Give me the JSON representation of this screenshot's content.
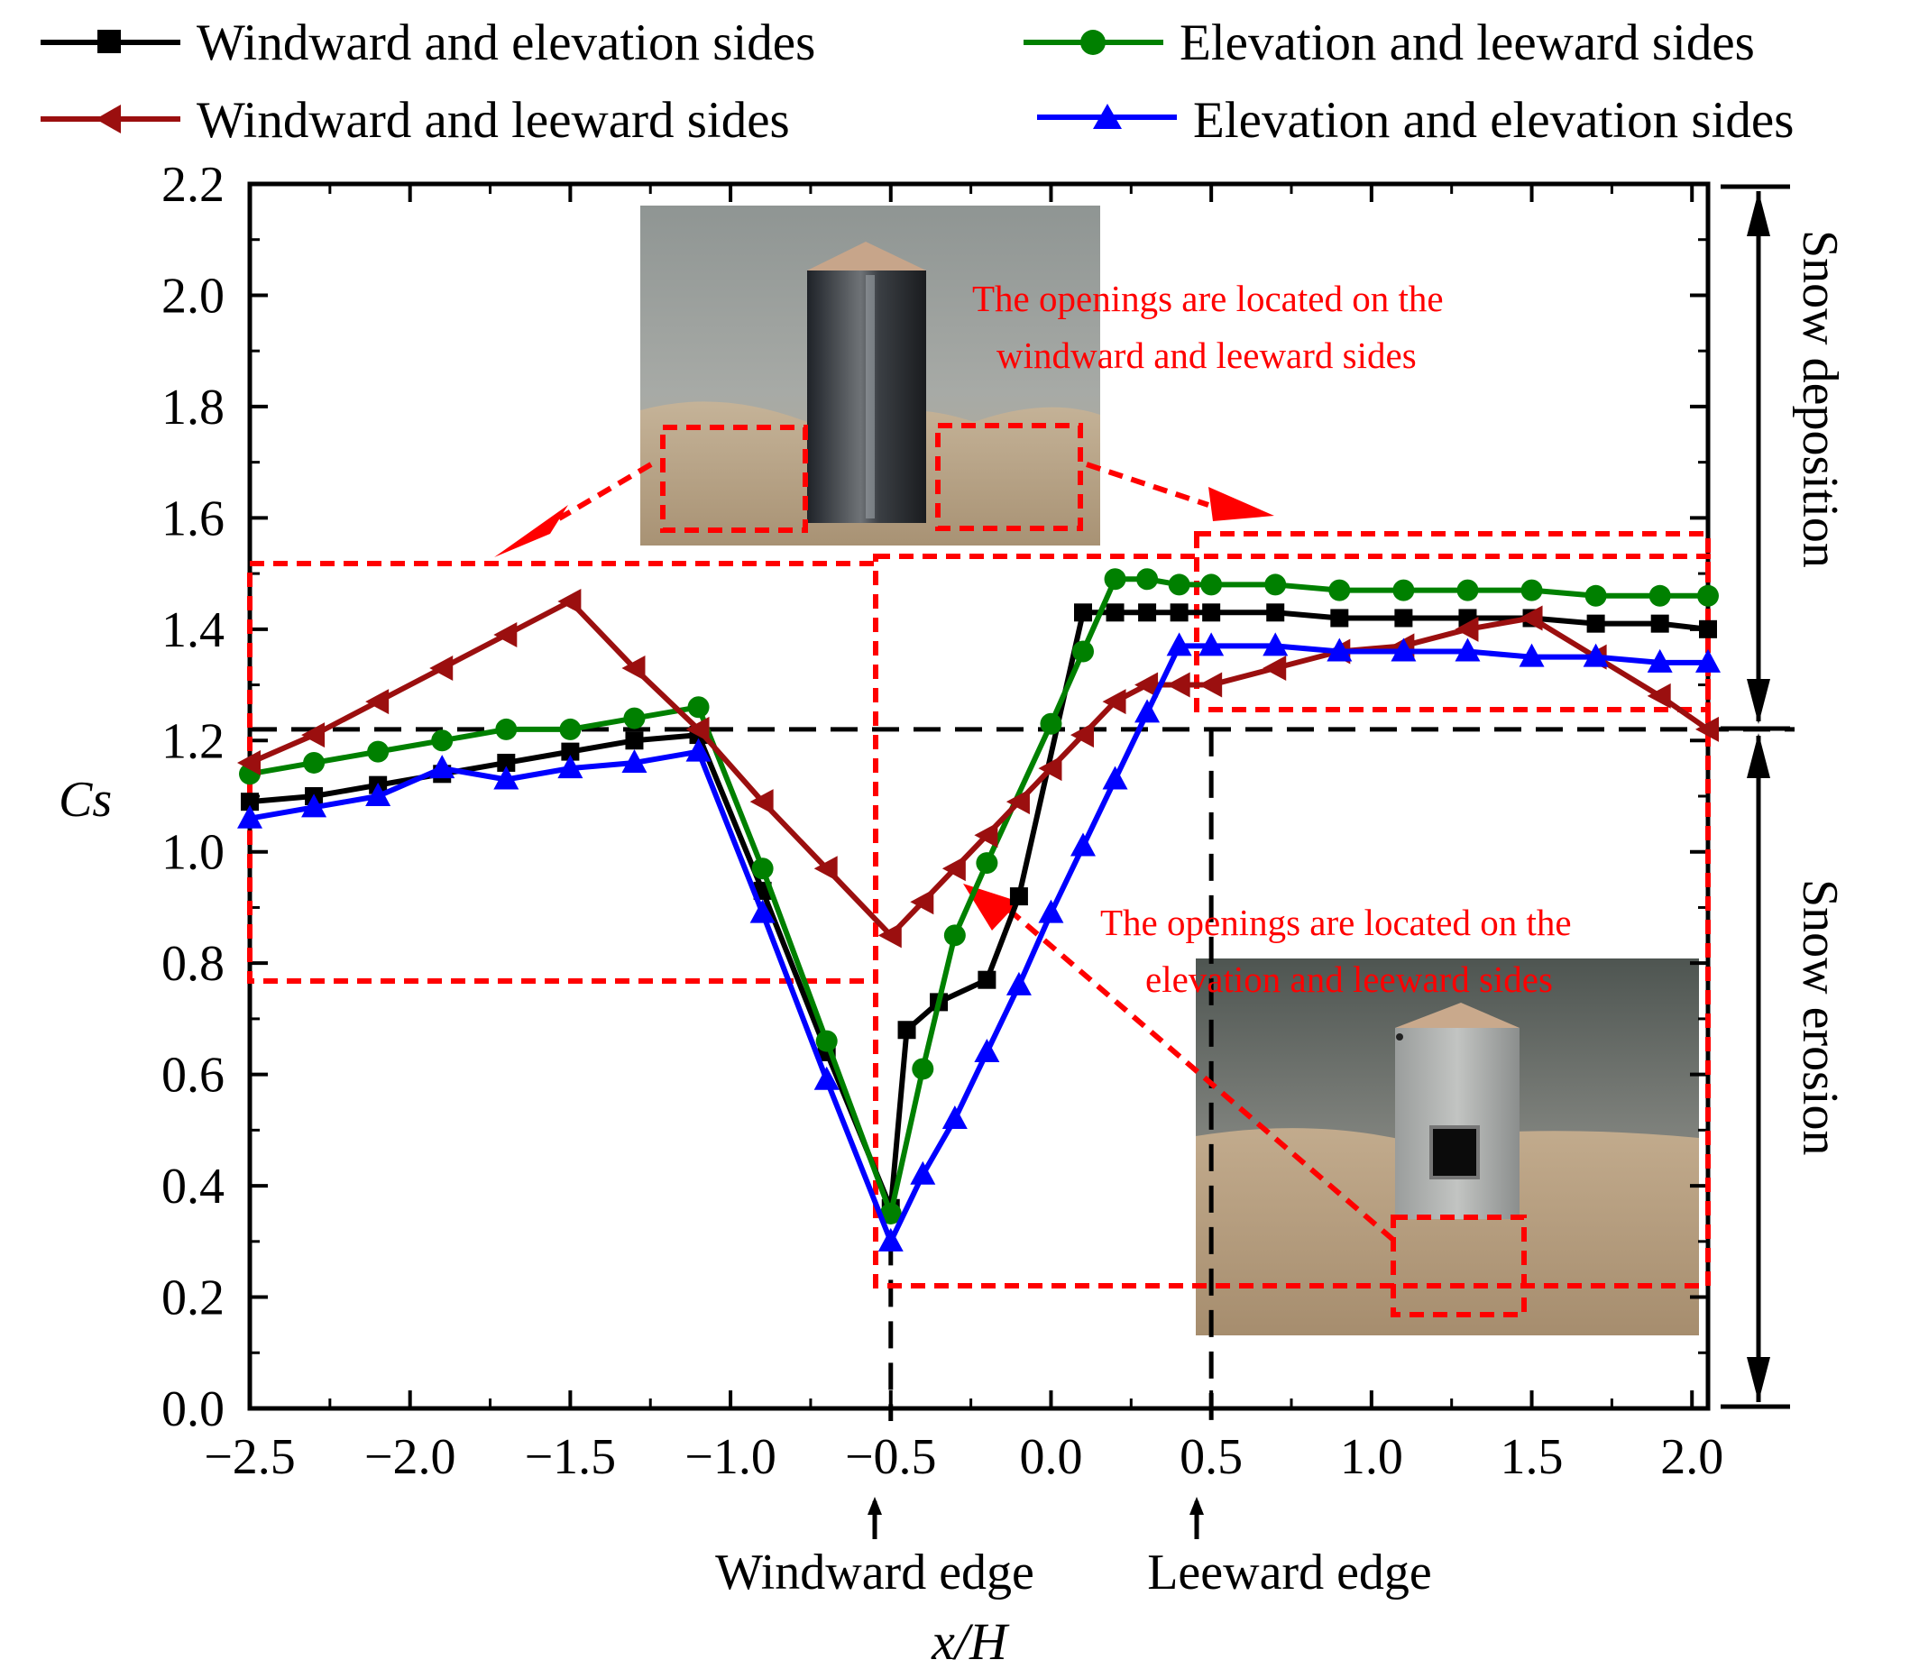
{
  "chart_data": {
    "type": "line",
    "xlabel": "x/H",
    "ylabel": "Cs",
    "xlim": [
      -2.5,
      2.05
    ],
    "ylim": [
      0.0,
      2.2
    ],
    "x_ticks": [
      "−2.5",
      "−2.0",
      "−1.5",
      "−1.0",
      "−0.5",
      "0.0",
      "0.5",
      "1.0",
      "1.5",
      "2.0"
    ],
    "x_tick_values": [
      -2.5,
      -2.0,
      -1.5,
      -1.0,
      -0.5,
      0.0,
      0.5,
      1.0,
      1.5,
      2.0
    ],
    "y_ticks": [
      "0.0",
      "0.2",
      "0.4",
      "0.6",
      "0.8",
      "1.0",
      "1.2",
      "1.4",
      "1.6",
      "1.8",
      "2.0",
      "2.2"
    ],
    "y_tick_values": [
      0.0,
      0.2,
      0.4,
      0.6,
      0.8,
      1.0,
      1.2,
      1.4,
      1.6,
      1.8,
      2.0,
      2.2
    ],
    "reference_line_y": 1.22,
    "edge_lines_x": [
      -0.5,
      0.5
    ],
    "series": [
      {
        "name": "Windward and elevation sides",
        "color": "#000000",
        "marker": "square",
        "x": [
          -2.5,
          -2.3,
          -2.1,
          -1.9,
          -1.7,
          -1.5,
          -1.3,
          -1.1,
          -0.9,
          -0.7,
          -0.5,
          -0.45,
          -0.35,
          -0.2,
          -0.1,
          0.1,
          0.2,
          0.3,
          0.4,
          0.5,
          0.7,
          0.9,
          1.1,
          1.3,
          1.5,
          1.7,
          1.9,
          2.05
        ],
        "y": [
          1.09,
          1.1,
          1.12,
          1.14,
          1.16,
          1.18,
          1.2,
          1.21,
          0.93,
          0.64,
          0.36,
          0.68,
          0.73,
          0.77,
          0.92,
          1.43,
          1.43,
          1.43,
          1.43,
          1.43,
          1.43,
          1.42,
          1.42,
          1.42,
          1.42,
          1.41,
          1.41,
          1.4
        ]
      },
      {
        "name": "Elevation and leeward sides",
        "color": "#008000",
        "marker": "circle",
        "x": [
          -2.5,
          -2.3,
          -2.1,
          -1.9,
          -1.7,
          -1.5,
          -1.3,
          -1.1,
          -0.9,
          -0.7,
          -0.5,
          -0.4,
          -0.3,
          -0.2,
          0.0,
          0.1,
          0.2,
          0.3,
          0.4,
          0.5,
          0.7,
          0.9,
          1.1,
          1.3,
          1.5,
          1.7,
          1.9,
          2.05
        ],
        "y": [
          1.14,
          1.16,
          1.18,
          1.2,
          1.22,
          1.22,
          1.24,
          1.26,
          0.97,
          0.66,
          0.35,
          0.61,
          0.85,
          0.98,
          1.23,
          1.36,
          1.49,
          1.49,
          1.48,
          1.48,
          1.48,
          1.47,
          1.47,
          1.47,
          1.47,
          1.46,
          1.46,
          1.46
        ]
      },
      {
        "name": "Windward and leeward sides",
        "color": "#9b0f0f",
        "marker": "triangle-left",
        "x": [
          -2.5,
          -2.3,
          -2.1,
          -1.9,
          -1.7,
          -1.5,
          -1.3,
          -1.1,
          -0.9,
          -0.7,
          -0.5,
          -0.4,
          -0.3,
          -0.2,
          -0.1,
          0.0,
          0.1,
          0.2,
          0.3,
          0.4,
          0.5,
          0.7,
          0.9,
          1.1,
          1.3,
          1.5,
          1.7,
          1.9,
          2.05
        ],
        "y": [
          1.16,
          1.21,
          1.27,
          1.33,
          1.39,
          1.45,
          1.33,
          1.22,
          1.09,
          0.97,
          0.85,
          0.91,
          0.97,
          1.03,
          1.09,
          1.15,
          1.21,
          1.27,
          1.3,
          1.3,
          1.3,
          1.33,
          1.36,
          1.37,
          1.4,
          1.42,
          1.35,
          1.28,
          1.22
        ]
      },
      {
        "name": "Elevation and elevation sides",
        "color": "#0000ff",
        "marker": "triangle-up",
        "x": [
          -2.5,
          -2.3,
          -2.1,
          -1.9,
          -1.7,
          -1.5,
          -1.3,
          -1.1,
          -0.9,
          -0.7,
          -0.5,
          -0.4,
          -0.3,
          -0.2,
          -0.1,
          0.0,
          0.1,
          0.2,
          0.3,
          0.4,
          0.5,
          0.7,
          0.9,
          1.1,
          1.3,
          1.5,
          1.7,
          1.9,
          2.05
        ],
        "y": [
          1.06,
          1.08,
          1.1,
          1.15,
          1.13,
          1.15,
          1.16,
          1.18,
          0.89,
          0.59,
          0.3,
          0.42,
          0.52,
          0.64,
          0.76,
          0.89,
          1.01,
          1.13,
          1.25,
          1.37,
          1.37,
          1.37,
          1.36,
          1.36,
          1.36,
          1.35,
          1.35,
          1.34,
          1.34
        ]
      }
    ],
    "annotations": {
      "windward_edge": "Windward edge",
      "leeward_edge": "Leeward edge",
      "snow_deposition": "Snow deposition",
      "snow_erosion": "Snow erosion",
      "note_top_line1": "The openings are located on the",
      "note_top_line2": "windward and leeward sides",
      "note_bottom_line1": "The openings are located on the",
      "note_bottom_line2": "elevation and leeward sides"
    }
  }
}
